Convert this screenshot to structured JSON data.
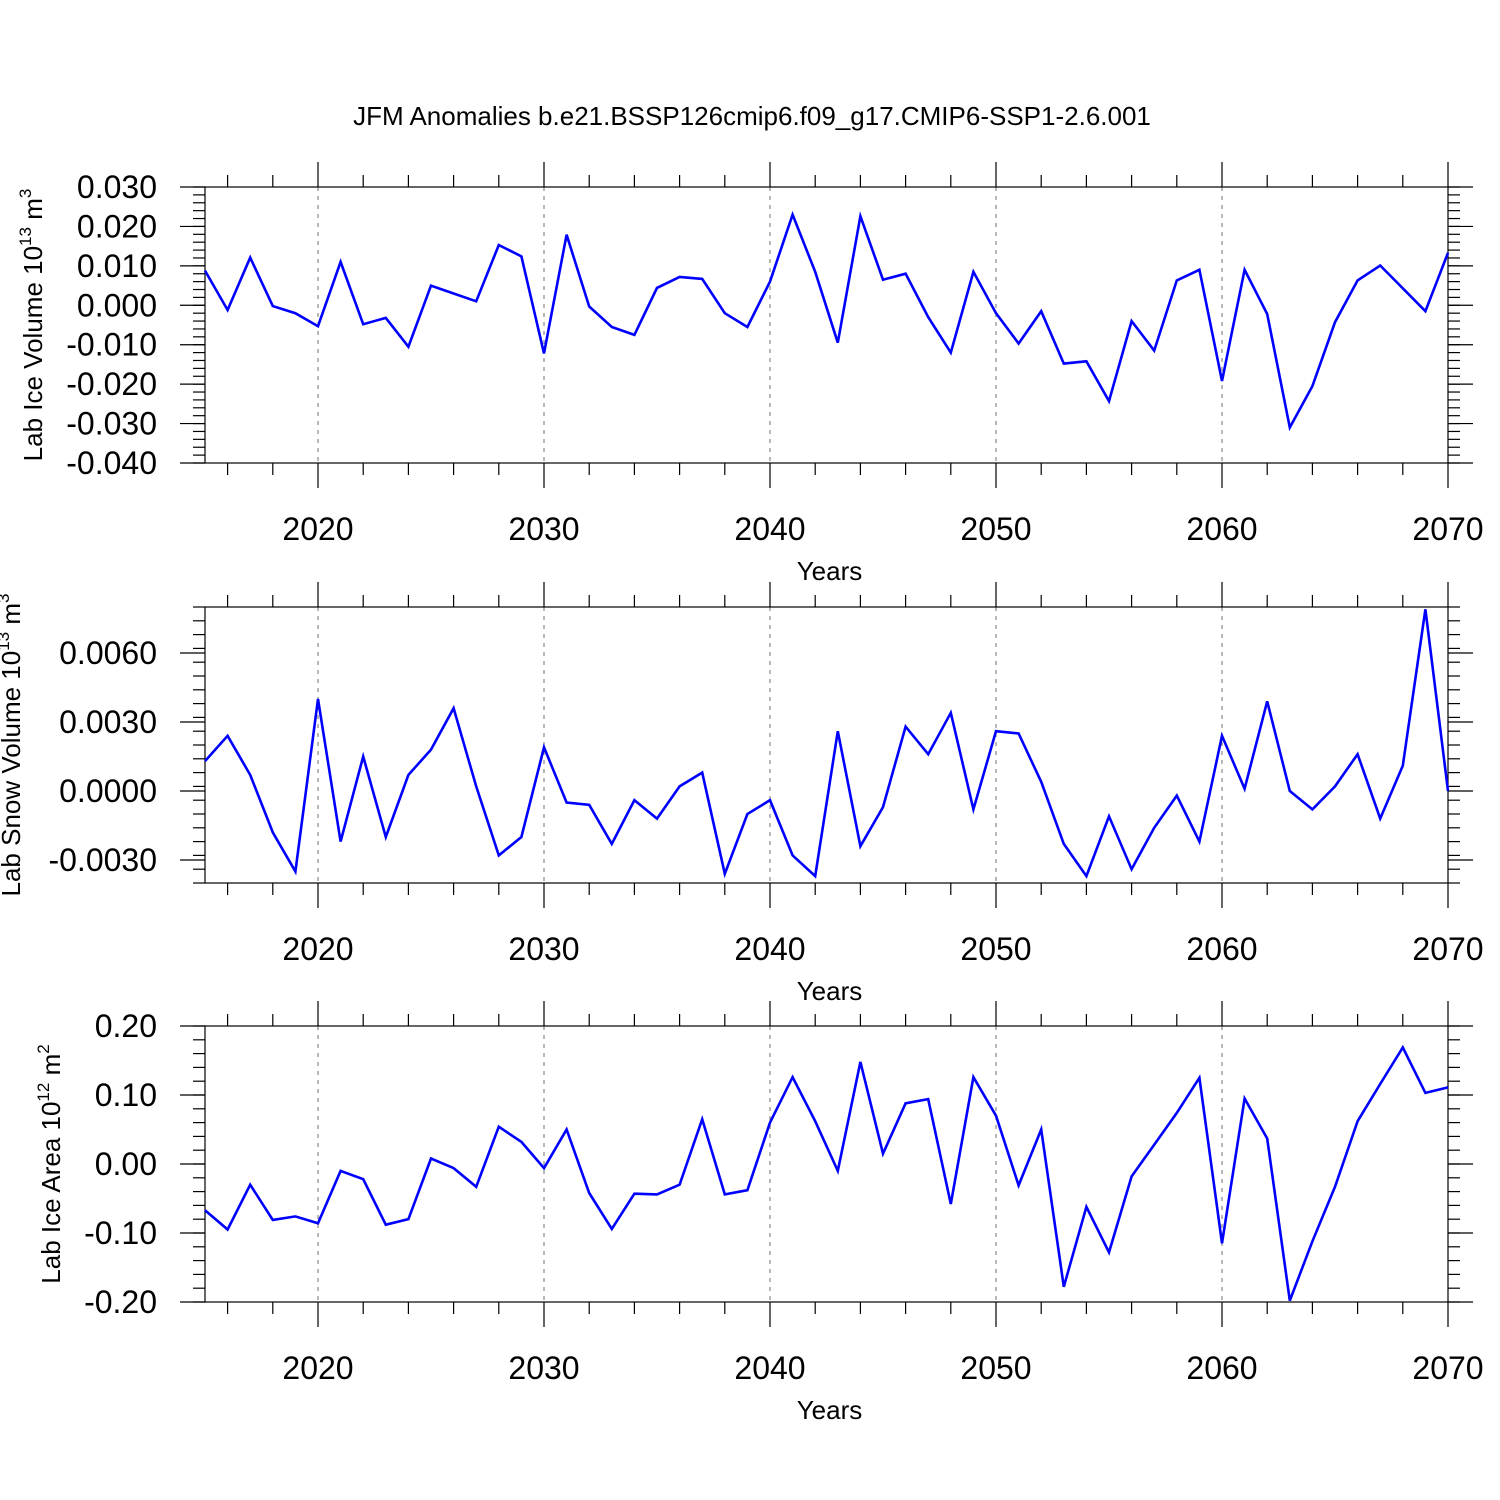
{
  "title": "JFM Anomalies b.e21.BSSP126cmip6.f09_g17.CMIP6-SSP1-2.6.001",
  "colors": {
    "line": "#0000ff",
    "grid": "#888888",
    "axis": "#000000"
  },
  "chart_data": [
    {
      "type": "line",
      "ylabel_main": "Lab Ice Volume 10",
      "ylabel_sup": "13",
      "ylabel_unit": " m",
      "ylabel_unit_sup": "3",
      "xlabel": "Years",
      "xlim": [
        2015,
        2070
      ],
      "ylim": [
        -0.04,
        0.03
      ],
      "yticks": [
        -0.04,
        -0.03,
        -0.02,
        -0.01,
        0.0,
        0.01,
        0.02,
        0.03
      ],
      "ytick_labels": [
        "-0.040",
        "-0.030",
        "-0.020",
        "-0.010",
        "0.000",
        "0.010",
        "0.020",
        "0.030"
      ],
      "xticks": [
        2020,
        2030,
        2040,
        2050,
        2060,
        2070
      ],
      "xtick_labels": [
        "2020",
        "2030",
        "2040",
        "2050",
        "2060",
        "2070"
      ],
      "x": [
        2015,
        2016,
        2017,
        2018,
        2019,
        2020,
        2021,
        2022,
        2023,
        2024,
        2025,
        2026,
        2027,
        2028,
        2029,
        2030,
        2031,
        2032,
        2033,
        2034,
        2035,
        2036,
        2037,
        2038,
        2039,
        2040,
        2041,
        2042,
        2043,
        2044,
        2045,
        2046,
        2047,
        2048,
        2049,
        2050,
        2051,
        2052,
        2053,
        2054,
        2055,
        2056,
        2057,
        2058,
        2059,
        2060,
        2061,
        2062,
        2063,
        2064,
        2065,
        2066,
        2067,
        2068,
        2069,
        2070
      ],
      "y": [
        0.0088,
        -0.0012,
        0.0121,
        -0.0002,
        -0.002,
        -0.0053,
        0.011,
        -0.0048,
        -0.0032,
        -0.0105,
        0.005,
        0.003,
        0.001,
        0.0153,
        0.0124,
        -0.0122,
        0.0179,
        -0.0003,
        -0.0055,
        -0.0075,
        0.0044,
        0.0072,
        0.0067,
        -0.002,
        -0.0055,
        0.006,
        0.023,
        0.0085,
        -0.0095,
        0.0226,
        0.0065,
        0.008,
        -0.003,
        -0.012,
        0.0085,
        -0.002,
        -0.0097,
        -0.0015,
        -0.0148,
        -0.0142,
        -0.0243,
        -0.004,
        -0.0115,
        0.0063,
        0.009,
        -0.0192,
        0.009,
        -0.0022,
        -0.031,
        -0.0205,
        -0.0043,
        0.0063,
        0.0101,
        0.0043,
        -0.0015,
        0.0133
      ]
    },
    {
      "type": "line",
      "ylabel_main": "Lab Snow Volume 10",
      "ylabel_sup": "13",
      "ylabel_unit": " m",
      "ylabel_unit_sup": "3",
      "xlabel": "Years",
      "xlim": [
        2015,
        2070
      ],
      "ylim": [
        -0.004,
        0.008
      ],
      "yticks": [
        -0.003,
        0.0,
        0.003,
        0.006
      ],
      "ytick_labels": [
        "-0.0030",
        "0.0000",
        "0.0030",
        "0.0060"
      ],
      "xticks": [
        2020,
        2030,
        2040,
        2050,
        2060,
        2070
      ],
      "xtick_labels": [
        "2020",
        "2030",
        "2040",
        "2050",
        "2060",
        "2070"
      ],
      "x": [
        2015,
        2016,
        2017,
        2018,
        2019,
        2020,
        2021,
        2022,
        2023,
        2024,
        2025,
        2026,
        2027,
        2028,
        2029,
        2030,
        2031,
        2032,
        2033,
        2034,
        2035,
        2036,
        2037,
        2038,
        2039,
        2040,
        2041,
        2042,
        2043,
        2044,
        2045,
        2046,
        2047,
        2048,
        2049,
        2050,
        2051,
        2052,
        2053,
        2054,
        2055,
        2056,
        2057,
        2058,
        2059,
        2060,
        2061,
        2062,
        2063,
        2064,
        2065,
        2066,
        2067,
        2068,
        2069,
        2070
      ],
      "y": [
        0.0013,
        0.0024,
        0.0007,
        -0.0018,
        -0.0035,
        0.004,
        -0.0022,
        0.0015,
        -0.002,
        0.0007,
        0.0018,
        0.0036,
        0.0002,
        -0.0028,
        -0.002,
        0.0019,
        -0.0005,
        -0.0006,
        -0.0023,
        -0.0004,
        -0.0012,
        0.0002,
        0.0008,
        -0.0036,
        -0.001,
        -0.0004,
        -0.0028,
        -0.0037,
        0.0026,
        -0.0024,
        -0.0007,
        0.0028,
        0.0016,
        0.0034,
        -0.0008,
        0.0026,
        0.0025,
        0.0004,
        -0.0023,
        -0.0037,
        -0.0011,
        -0.0034,
        -0.0016,
        -0.0002,
        -0.0022,
        0.0024,
        0.0001,
        0.0039,
        -0.0,
        -0.0008,
        0.0002,
        0.0016,
        -0.0012,
        0.0011,
        0.0079,
        0.0
      ]
    },
    {
      "type": "line",
      "ylabel_main": "Lab Ice Area 10",
      "ylabel_sup": "12",
      "ylabel_unit": " m",
      "ylabel_unit_sup": "2",
      "xlabel": "Years",
      "xlim": [
        2015,
        2070
      ],
      "ylim": [
        -0.2,
        0.2
      ],
      "yticks": [
        -0.2,
        -0.1,
        0.0,
        0.1,
        0.2
      ],
      "ytick_labels": [
        "-0.20",
        "-0.10",
        "0.00",
        "0.10",
        "0.20"
      ],
      "xticks": [
        2020,
        2030,
        2040,
        2050,
        2060,
        2070
      ],
      "xtick_labels": [
        "2020",
        "2030",
        "2040",
        "2050",
        "2060",
        "2070"
      ],
      "x": [
        2015,
        2016,
        2017,
        2018,
        2019,
        2020,
        2021,
        2022,
        2023,
        2024,
        2025,
        2026,
        2027,
        2028,
        2029,
        2030,
        2031,
        2032,
        2033,
        2034,
        2035,
        2036,
        2037,
        2038,
        2039,
        2040,
        2041,
        2042,
        2043,
        2044,
        2045,
        2046,
        2047,
        2048,
        2049,
        2050,
        2051,
        2052,
        2053,
        2054,
        2055,
        2056,
        2057,
        2058,
        2059,
        2060,
        2061,
        2062,
        2063,
        2064,
        2065,
        2066,
        2067,
        2068,
        2069,
        2070
      ],
      "y": [
        -0.067,
        -0.095,
        -0.03,
        -0.081,
        -0.076,
        -0.086,
        -0.01,
        -0.022,
        -0.088,
        -0.08,
        0.008,
        -0.006,
        -0.033,
        0.054,
        0.032,
        -0.006,
        0.05,
        -0.042,
        -0.094,
        -0.043,
        -0.044,
        -0.03,
        0.065,
        -0.044,
        -0.038,
        0.06,
        0.126,
        0.062,
        -0.01,
        0.148,
        0.015,
        0.088,
        0.094,
        -0.058,
        0.126,
        0.07,
        -0.031,
        0.05,
        -0.178,
        -0.062,
        -0.128,
        -0.018,
        0.028,
        0.074,
        0.125,
        -0.115,
        0.095,
        0.037,
        -0.198,
        -0.112,
        -0.033,
        0.062,
        0.116,
        0.169,
        0.103,
        0.111
      ]
    }
  ]
}
